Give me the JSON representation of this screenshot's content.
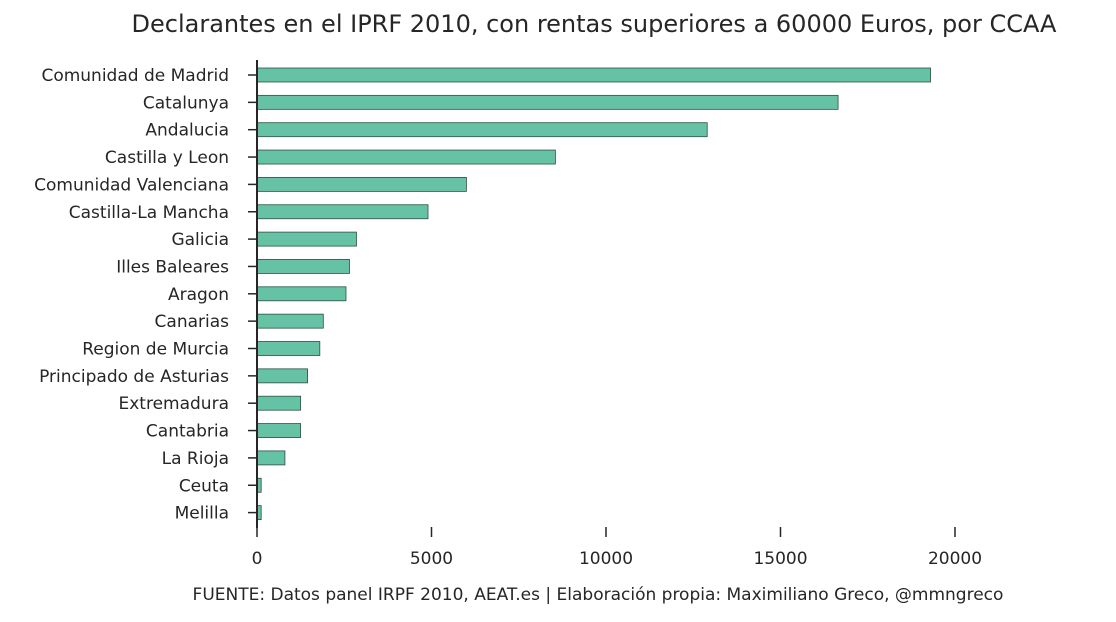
{
  "chart_data": {
    "type": "bar",
    "orientation": "horizontal",
    "title": "Declarantes en el IPRF 2010, con rentas superiores a 60000 Euros, por CCAA",
    "source_note": "FUENTE: Datos panel IRPF 2010, AEAT.es | Elaboración propia: Maximiliano Greco, @mmngreco",
    "xlabel": "",
    "ylabel": "",
    "categories": [
      "Comunidad de Madrid",
      "Catalunya",
      "Andalucia",
      "Castilla y Leon",
      "Comunidad Valenciana",
      "Castilla-La Mancha",
      "Galicia",
      "Illes Baleares",
      "Aragon",
      "Canarias",
      "Region de Murcia",
      "Principado de Asturias",
      "Extremadura",
      "Cantabria",
      "La Rioja",
      "Ceuta",
      "Melilla"
    ],
    "values": [
      19300,
      16650,
      12900,
      8550,
      6000,
      4900,
      2850,
      2650,
      2550,
      1900,
      1800,
      1450,
      1250,
      1250,
      800,
      120,
      120
    ],
    "xlim": [
      0,
      22700
    ],
    "xticks": [
      0,
      5000,
      10000,
      15000,
      20000
    ],
    "xtick_labels": [
      "0",
      "5000",
      "10000",
      "15000",
      "20000"
    ],
    "grid": false,
    "legend": "none",
    "colors": {
      "bar_fill": "#66c2a5",
      "bar_edge": "#2f4f44",
      "axis": "#262626"
    }
  }
}
